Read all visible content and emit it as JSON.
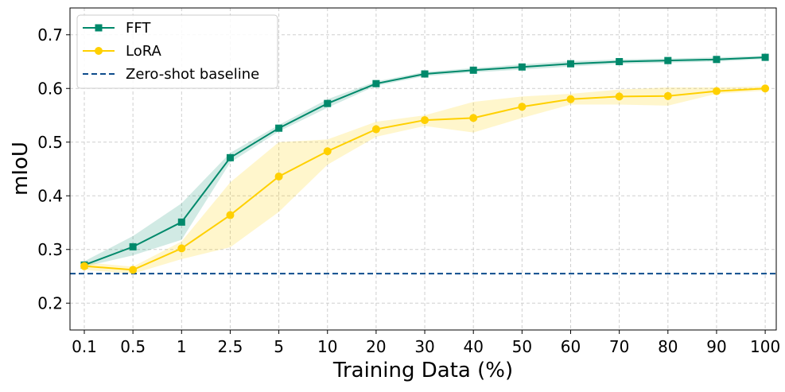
{
  "chart_data": {
    "type": "line",
    "xlabel": "Training Data (%)",
    "ylabel": "mIoU",
    "categories": [
      "0.1",
      "0.5",
      "1",
      "2.5",
      "5",
      "10",
      "20",
      "30",
      "40",
      "50",
      "60",
      "70",
      "80",
      "90",
      "100"
    ],
    "ylim": [
      0.15,
      0.75
    ],
    "yticks": [
      "0.2",
      "0.3",
      "0.4",
      "0.5",
      "0.6",
      "0.7"
    ],
    "grid": true,
    "legend_position": "top-left",
    "series": [
      {
        "name": "FFT",
        "color": "#00896b",
        "marker": "square",
        "values": [
          0.271,
          0.305,
          0.351,
          0.471,
          0.526,
          0.572,
          0.609,
          0.627,
          0.634,
          0.64,
          0.646,
          0.65,
          0.652,
          0.654,
          0.658
        ],
        "lower": [
          0.268,
          0.289,
          0.318,
          0.462,
          0.52,
          0.564,
          0.605,
          0.623,
          0.63,
          0.635,
          0.641,
          0.646,
          0.648,
          0.65,
          0.655
        ],
        "upper": [
          0.278,
          0.325,
          0.386,
          0.48,
          0.532,
          0.58,
          0.613,
          0.631,
          0.638,
          0.645,
          0.651,
          0.654,
          0.656,
          0.658,
          0.661
        ]
      },
      {
        "name": "LoRA",
        "color": "#ffd000",
        "marker": "circle",
        "values": [
          0.269,
          0.262,
          0.302,
          0.364,
          0.436,
          0.483,
          0.524,
          0.541,
          0.545,
          0.566,
          0.58,
          0.585,
          0.586,
          0.595,
          0.6
        ],
        "lower": [
          0.262,
          0.255,
          0.282,
          0.304,
          0.37,
          0.458,
          0.51,
          0.53,
          0.518,
          0.545,
          0.57,
          0.57,
          0.568,
          0.59,
          0.596
        ],
        "upper": [
          0.276,
          0.268,
          0.315,
          0.425,
          0.5,
          0.505,
          0.538,
          0.55,
          0.575,
          0.585,
          0.59,
          0.598,
          0.602,
          0.602,
          0.604
        ]
      }
    ],
    "baseline": {
      "name": "Zero-shot baseline",
      "value": 0.255,
      "color": "#0d4c8c",
      "style": "dashed"
    }
  }
}
